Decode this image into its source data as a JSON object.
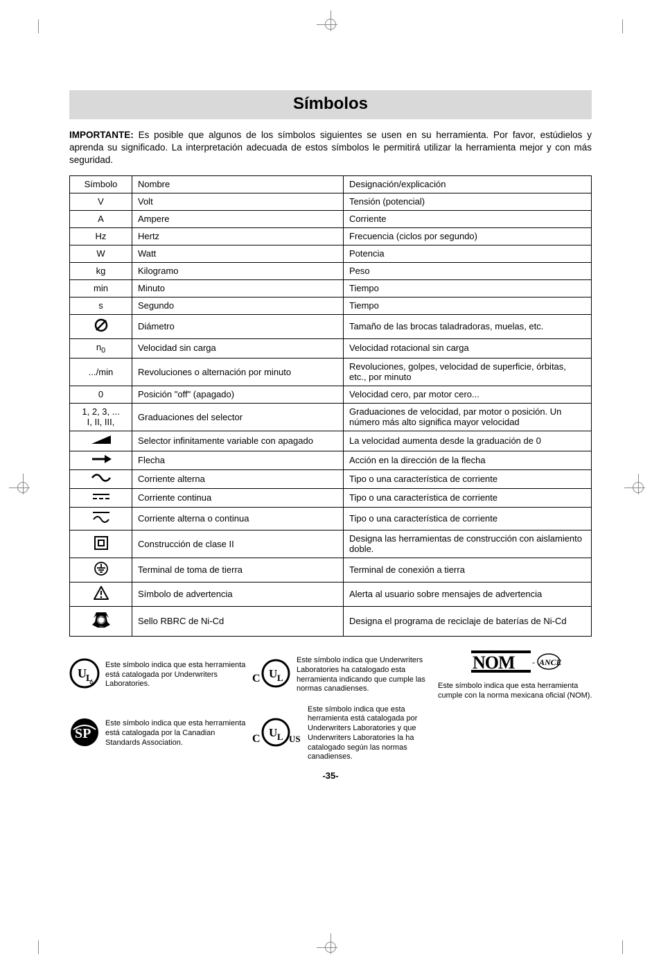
{
  "title": "Símbolos",
  "intro_label": "IMPORTANTE:",
  "intro_text": "Es posible que algunos de los símbolos siguientes se usen en su herramienta.  Por favor, estúdielos y aprenda su significado.  La interpretación adecuada de estos símbolos le permitirá utilizar la herramienta mejor y con más seguridad.",
  "headers": {
    "c1": "Símbolo",
    "c2": "Nombre",
    "c3": "Designación/explicación"
  },
  "rows": [
    {
      "sym_text": "V",
      "name": "Volt",
      "desc": "Tensión (potencial)"
    },
    {
      "sym_text": "A",
      "name": "Ampere",
      "desc": "Corriente"
    },
    {
      "sym_text": "Hz",
      "name": "Hertz",
      "desc": "Frecuencia (ciclos por segundo)"
    },
    {
      "sym_text": "W",
      "name": "Watt",
      "desc": "Potencia"
    },
    {
      "sym_text": "kg",
      "name": "Kilogramo",
      "desc": "Peso"
    },
    {
      "sym_text": "min",
      "name": "Minuto",
      "desc": "Tiempo"
    },
    {
      "sym_text": "s",
      "name": "Segundo",
      "desc": "Tiempo"
    },
    {
      "sym_svg": "diameter",
      "name": "Diámetro",
      "desc": "Tamaño de las brocas taladradoras, muelas, etc."
    },
    {
      "sym_html": "n<sub>0</sub>",
      "name": "Velocidad sin carga",
      "desc": "Velocidad rotacional sin carga"
    },
    {
      "sym_text": ".../min",
      "name": "Revoluciones o alternación por minuto",
      "desc": "Revoluciones, golpes, velocidad de superficie, órbitas, etc., por minuto"
    },
    {
      "sym_text": "0",
      "name": "Posición \"off\" (apagado)",
      "desc": "Velocidad cero, par motor cero..."
    },
    {
      "sym_html": "1, 2, 3, ...<br>I, II, III,",
      "name": "Graduaciones del selector",
      "desc": "Graduaciones de velocidad, par motor o posición.  Un número más alto significa mayor velocidad"
    },
    {
      "sym_svg": "ramp",
      "name": "Selector infinitamente variable con apagado",
      "desc": "La velocidad aumenta desde la graduación de 0"
    },
    {
      "sym_svg": "arrow",
      "name": "Flecha",
      "desc": "Acción en la dirección de la flecha"
    },
    {
      "sym_svg": "ac",
      "name": "Corriente alterna",
      "desc": "Tipo o una característica de corriente"
    },
    {
      "sym_svg": "dc",
      "name": "Corriente continua",
      "desc": "Tipo o una característica de corriente"
    },
    {
      "sym_svg": "acdc",
      "name": "Corriente alterna o continua",
      "desc": "Tipo o una característica de corriente"
    },
    {
      "sym_svg": "class2",
      "name": "Construcción de clase II",
      "desc": "Designa las herramientas de construcción con aislamiento doble."
    },
    {
      "sym_svg": "earth",
      "name": "Terminal de toma de tierra",
      "desc": "Terminal de conexión a tierra"
    },
    {
      "sym_svg": "warning",
      "name": "Símbolo de advertencia",
      "desc": "Alerta al usuario sobre mensajes de advertencia"
    },
    {
      "sym_svg": "rbrc",
      "name": "Sello RBRC de Ni-Cd",
      "desc": "Designa el programa de reciclaje de baterías de Ni-Cd"
    }
  ],
  "footer": {
    "ul": "Este símbolo indica que esta herramienta está catalogada por Underwriters Laboratories.",
    "csa": "Este símbolo indica que esta herramienta está catalogada por la Canadian Standards Association.",
    "cul": "Este símbolo indica que Underwriters Laboratories ha catalogado esta herramienta indicando que cumple las normas canadienses.",
    "culus": "Este símbolo indica que esta herramienta está catalogada por Underwriters Laboratories y que Underwriters Laboratories la ha catalogado según las normas canadienses.",
    "nom": "Este símbolo indica que esta herramienta cumple con la norma mexicana oficial (NOM)."
  },
  "pagenum": "-35-"
}
